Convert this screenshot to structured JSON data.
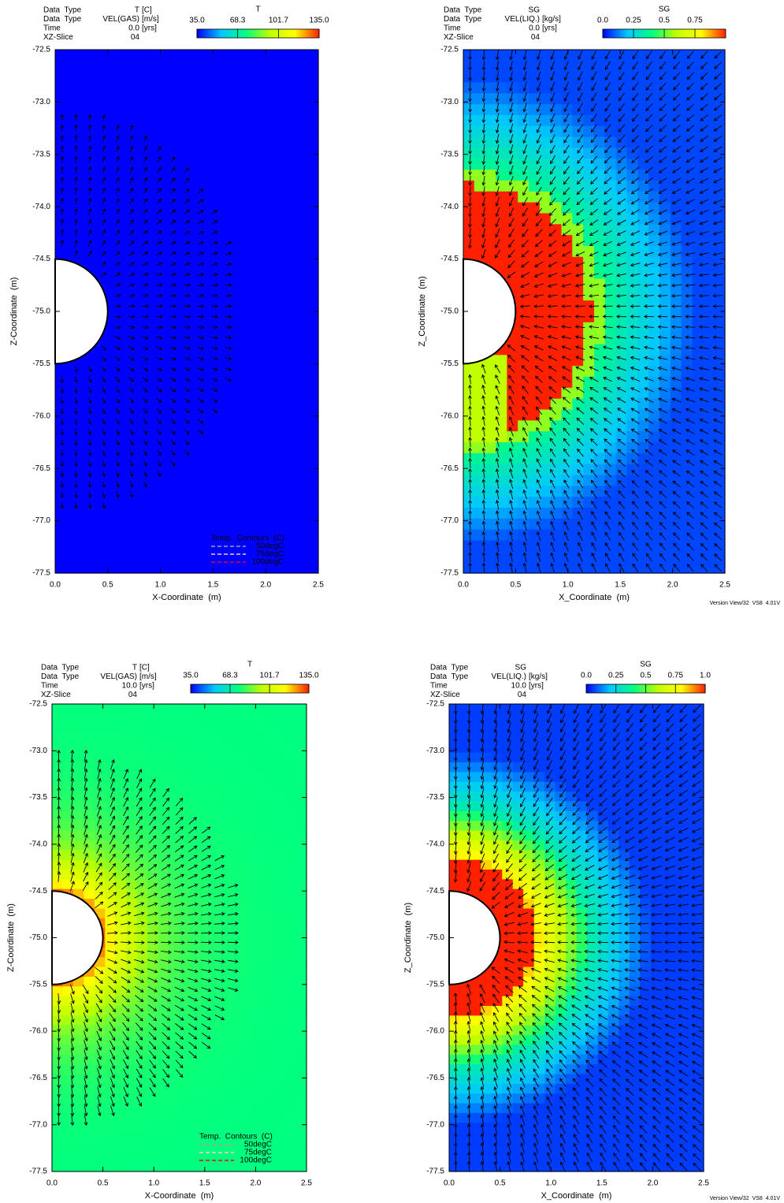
{
  "chart_data": [
    {
      "type": "heatmap",
      "title": "T",
      "header": [
        [
          "Data  Type",
          "T",
          "[C]"
        ],
        [
          "Data  Type",
          "VEL(GAS)",
          "[m/s]"
        ],
        [
          "Time",
          "0.0",
          "[yrs]"
        ],
        [
          "XZ-Slice",
          "04"
        ]
      ],
      "clim": [
        35,
        135
      ],
      "colorbar_ticks": [
        {
          "value": 35,
          "label": "35.0"
        },
        68.3,
        101.7,
        {
          "value": 135,
          "label": "135.0"
        }
      ],
      "colormap": [
        "#0000ff",
        "#00c8ff",
        "#00ff80",
        "#c0ff00",
        "#ffff00",
        "#ff2000"
      ],
      "xlabel": "X-Coordinate  (m)",
      "ylabel": "Z-Coordinate  (m)",
      "xlim": [
        0,
        2.5
      ],
      "ylim": [
        -72.5,
        -77.5
      ],
      "xticks": [
        {
          "value": 0,
          "label": "0.0"
        },
        0.5,
        {
          "value": 1,
          "label": "1.0"
        },
        1.5,
        {
          "value": 2,
          "label": "2.0"
        },
        2.5
      ],
      "yticks": [
        -72.5,
        {
          "value": -73,
          "label": "-73.0"
        },
        -73.5,
        {
          "value": -74,
          "label": "-74.0"
        },
        -74.5,
        {
          "value": -75,
          "label": "-75.0"
        },
        -75.5,
        {
          "value": -76,
          "label": "-76.0"
        },
        -76.5,
        {
          "value": -77,
          "label": "-77.0"
        },
        -77.5
      ],
      "legend": {
        "title": "Temp.  Contours  (C)",
        "entries": [
          {
            "name": "50degC",
            "color": "#a0a0a0"
          },
          {
            "name": "75degC",
            "color": "#ffc8c8"
          },
          {
            "name": "100degC",
            "color": "#e01010"
          }
        ]
      }
    },
    {
      "type": "heatmap",
      "title": "SG",
      "header": [
        [
          "Data  Type",
          "SG",
          ""
        ],
        [
          "Data  Type",
          "VEL(LIQ.)",
          "[kg/s]"
        ],
        [
          "Time",
          "0.0",
          "[yrs]"
        ],
        [
          "XZ-Slice",
          "04"
        ]
      ],
      "clim": [
        0,
        1
      ],
      "colorbar_ticks": [
        {
          "value": 0,
          "label": "0.0"
        },
        0.25,
        0.5,
        0.75
      ],
      "colormap": [
        "#0000ff",
        "#00c8ff",
        "#00ff80",
        "#c0ff00",
        "#ffff00",
        "#ff2000"
      ],
      "xlabel": "X_Coordinate  (m)",
      "ylabel": "Z_Coordinate  (m)",
      "xlim": [
        0,
        2.5
      ],
      "ylim": [
        -72.5,
        -77.5
      ],
      "xticks": [
        {
          "value": 0,
          "label": "0.0"
        },
        0.5,
        {
          "value": 1,
          "label": "1.0"
        },
        1.5,
        {
          "value": 2,
          "label": "2.0"
        },
        2.5
      ],
      "yticks": [
        -72.5,
        {
          "value": -73,
          "label": "-73.0"
        },
        -73.5,
        {
          "value": -74,
          "label": "-74.0"
        },
        -74.5,
        {
          "value": -75,
          "label": "-75.0"
        },
        -75.5,
        {
          "value": -76,
          "label": "-76.0"
        },
        -76.5,
        {
          "value": -77,
          "label": "-77.0"
        },
        -77.5
      ],
      "footer": "Version View/32  VS8  4.01V"
    },
    {
      "type": "heatmap",
      "title": "T",
      "header": [
        [
          "Data  Type",
          "T",
          "[C]"
        ],
        [
          "Data  Type",
          "VEL(GAS)",
          "[m/s]"
        ],
        [
          "Time",
          "10.0",
          "[yrs]"
        ],
        [
          "XZ-Slice",
          "04"
        ]
      ],
      "clim": [
        35,
        135
      ],
      "colorbar_ticks": [
        {
          "value": 35,
          "label": "35.0"
        },
        68.3,
        101.7,
        {
          "value": 135,
          "label": "135.0"
        }
      ],
      "colormap": [
        "#0000ff",
        "#00c8ff",
        "#00ff80",
        "#c0ff00",
        "#ffff00",
        "#ff2000"
      ],
      "xlabel": "X-Coordinate  (m)",
      "ylabel": "Z-Coordinate  (m)",
      "xlim": [
        0,
        2.5
      ],
      "ylim": [
        -72.5,
        -77.5
      ],
      "xticks": [
        {
          "value": 0,
          "label": "0.0"
        },
        0.5,
        {
          "value": 1,
          "label": "1.0"
        },
        1.5,
        {
          "value": 2,
          "label": "2.0"
        },
        2.5
      ],
      "yticks": [
        -72.5,
        {
          "value": -73,
          "label": "-73.0"
        },
        -73.5,
        {
          "value": -74,
          "label": "-74.0"
        },
        -74.5,
        {
          "value": -75,
          "label": "-75.0"
        },
        -75.5,
        {
          "value": -76,
          "label": "-76.0"
        },
        -76.5,
        {
          "value": -77,
          "label": "-77.0"
        },
        -77.5
      ],
      "legend": {
        "title": "Temp.  Contours  (C)",
        "entries": [
          {
            "name": "50degC",
            "color": "#a0a0a0"
          },
          {
            "name": "75degC",
            "color": "#ffc8c8"
          },
          {
            "name": "100degC",
            "color": "#e01010"
          }
        ]
      }
    },
    {
      "type": "heatmap",
      "title": "SG",
      "header": [
        [
          "Data  Type",
          "SG",
          ""
        ],
        [
          "Data  Type",
          "VEL(LIQ.)",
          "[kg/s]"
        ],
        [
          "Time",
          "10.0",
          "[yrs]"
        ],
        [
          "XZ-Slice",
          "04"
        ]
      ],
      "clim": [
        0,
        1
      ],
      "colorbar_ticks": [
        {
          "value": 0,
          "label": "0.0"
        },
        0.25,
        0.5,
        0.75,
        {
          "value": 1,
          "label": "1.0"
        }
      ],
      "colormap": [
        "#0000ff",
        "#00c8ff",
        "#00ff80",
        "#c0ff00",
        "#ffff00",
        "#ff2000"
      ],
      "xlabel": "X_Coordinate  (m)",
      "ylabel": "Z_Coordinate  (m)",
      "xlim": [
        0,
        2.5
      ],
      "ylim": [
        -72.5,
        -77.5
      ],
      "xticks": [
        {
          "value": 0,
          "label": "0.0"
        },
        0.5,
        {
          "value": 1,
          "label": "1.0"
        },
        1.5,
        {
          "value": 2,
          "label": "2.0"
        },
        2.5
      ],
      "yticks": [
        -72.5,
        {
          "value": -73,
          "label": "-73.0"
        },
        -73.5,
        {
          "value": -74,
          "label": "-74.0"
        },
        -74.5,
        {
          "value": -75,
          "label": "-75.0"
        },
        -75.5,
        {
          "value": -76,
          "label": "-76.0"
        },
        -76.5,
        {
          "value": -77,
          "label": "-77.0"
        },
        -77.5
      ],
      "footer": "Version View/32  VS8  4.01V"
    }
  ]
}
